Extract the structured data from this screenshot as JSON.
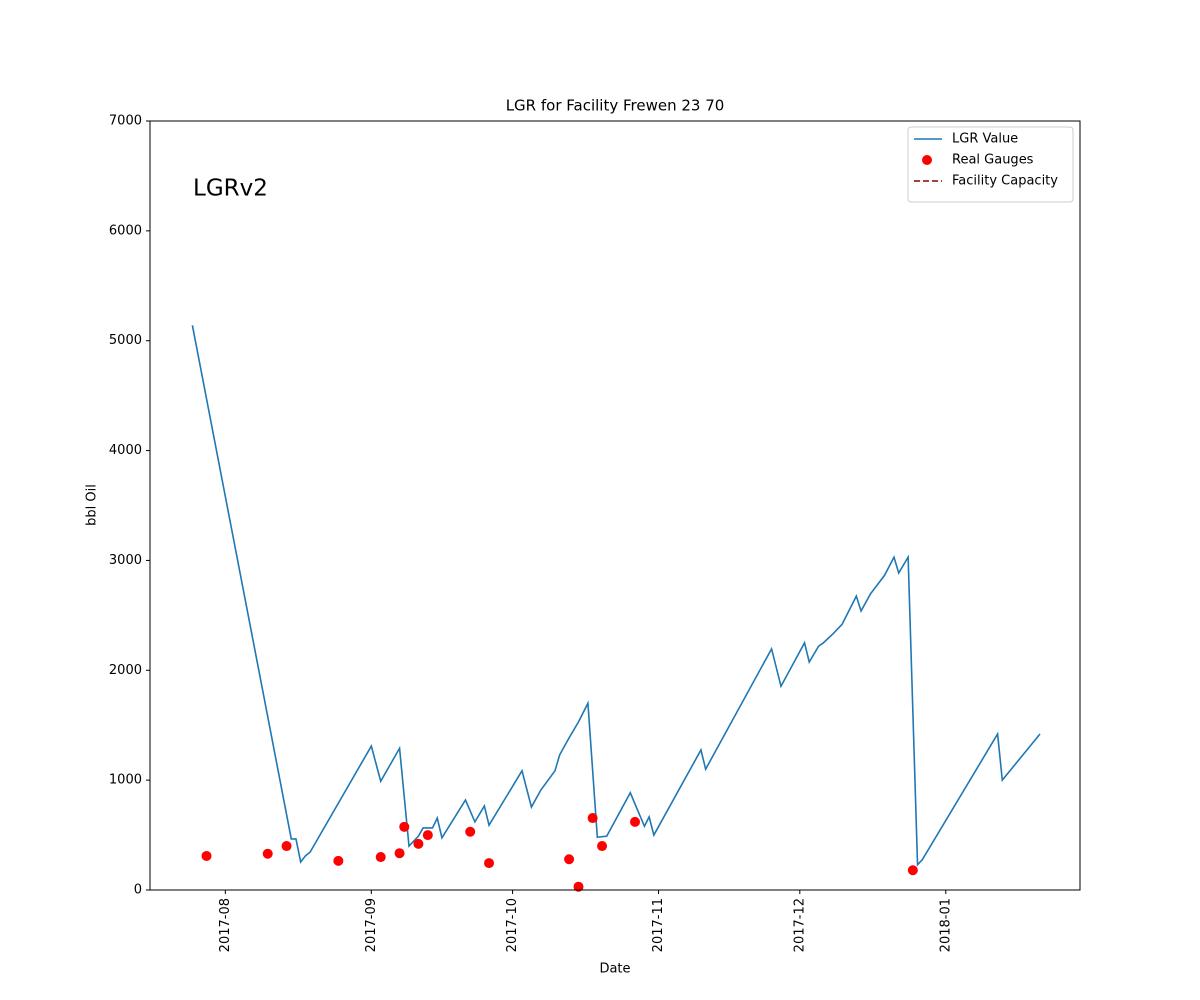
{
  "chart_data": {
    "type": "line",
    "title": "LGR for Facility Frewen 23 70",
    "xlabel": "Date",
    "ylabel": "bbl Oil",
    "annotation": "LGRv2",
    "legend": "upper right",
    "xlim": [
      17363,
      17560.5
    ],
    "xticks": [
      {
        "value": 17379,
        "label": "2017-08"
      },
      {
        "value": 17410,
        "label": "2017-09"
      },
      {
        "value": 17440,
        "label": "2017-10"
      },
      {
        "value": 17471,
        "label": "2017-11"
      },
      {
        "value": 17501,
        "label": "2017-12"
      },
      {
        "value": 17532,
        "label": "2018-01"
      }
    ],
    "ylim": [
      0,
      7000
    ],
    "yticks": [
      0,
      1000,
      2000,
      3000,
      4000,
      5000,
      6000,
      7000
    ],
    "series": [
      {
        "name": "LGR Value",
        "type": "line",
        "color": "#1f77b4",
        "x": [
          17372,
          17393,
          17394,
          17395,
          17396,
          17397,
          17410,
          17412,
          17416,
          17418,
          17420,
          17421,
          17423,
          17424,
          17425,
          17430,
          17432,
          17434,
          17435,
          17442,
          17444,
          17446,
          17449,
          17450,
          17452,
          17454,
          17456,
          17458,
          17460,
          17465,
          17468,
          17469,
          17470,
          17480,
          17481,
          17495,
          17497,
          17502,
          17503,
          17505,
          17506,
          17508,
          17510,
          17513,
          17514,
          17516,
          17519,
          17521,
          17522,
          17524,
          17526,
          17527,
          17543,
          17544,
          17552
        ],
        "values": [
          5140,
          465,
          465,
          255,
          310,
          345,
          1310,
          990,
          1290,
          400,
          490,
          565,
          565,
          655,
          475,
          820,
          620,
          765,
          590,
          1085,
          755,
          910,
          1085,
          1230,
          1385,
          1530,
          1700,
          480,
          490,
          885,
          580,
          665,
          500,
          1275,
          1100,
          2195,
          1855,
          2250,
          2075,
          2220,
          2250,
          2330,
          2420,
          2675,
          2540,
          2695,
          2865,
          3030,
          2885,
          3030,
          230,
          275,
          1420,
          1000,
          1420
        ]
      },
      {
        "name": "Real Gauges",
        "type": "scatter",
        "color": "#ff0000",
        "x": [
          17375,
          17388,
          17392,
          17403,
          17412,
          17416,
          17417,
          17420,
          17422,
          17431,
          17435,
          17452,
          17454,
          17457,
          17459,
          17466,
          17525
        ],
        "values": [
          310,
          330,
          400,
          265,
          300,
          335,
          575,
          420,
          500,
          530,
          245,
          280,
          30,
          655,
          400,
          620,
          180
        ]
      },
      {
        "name": "Facility Capacity",
        "type": "line",
        "linestyle": "dashed",
        "color": "#8b0000",
        "x": [],
        "values": []
      }
    ]
  }
}
